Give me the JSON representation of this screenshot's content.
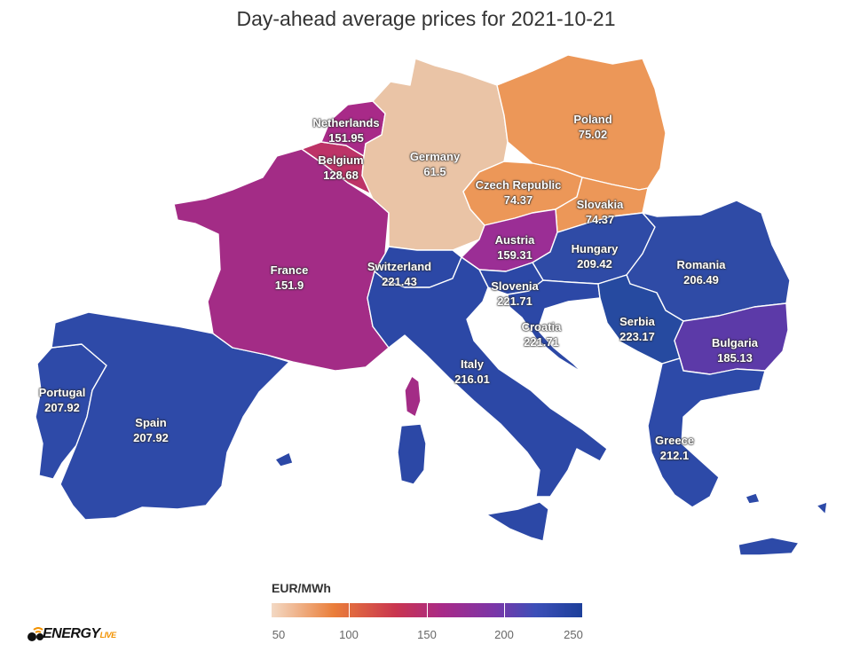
{
  "title": "Day-ahead average prices for 2021-10-21",
  "legend": {
    "title": "EUR/MWh",
    "ticks": [
      "50",
      "100",
      "150",
      "200",
      "250"
    ]
  },
  "logo": {
    "main": "ENERGY",
    "sub": "LIVE"
  },
  "colors": {
    "Portugal": "#2e4aa8",
    "Spain": "#2e4aa8",
    "France": "#a32c86",
    "Belgium": "#bd3367",
    "Netherlands": "#a82a88",
    "Germany": "#eac4a6",
    "Poland": "#ec9758",
    "Czech Republic": "#ec9758",
    "Slovakia": "#ec9758",
    "Austria": "#9b2e95",
    "Switzerland": "#2c48a6",
    "Italy": "#2c48a6",
    "Slovenia": "#2c48a6",
    "Croatia": "#2c48a6",
    "Hungary": "#2f4ba6",
    "Romania": "#2f4ba6",
    "Serbia": "#264aa0",
    "Bulgaria": "#5c3aa8",
    "Greece": "#2d4aa8",
    "Corsica": "#a32c86",
    "Sardinia": "#2c48a6"
  },
  "labels": [
    {
      "name": "Netherlands",
      "value": "151.95"
    },
    {
      "name": "Belgium",
      "value": "128.68"
    },
    {
      "name": "Germany",
      "value": "61.5"
    },
    {
      "name": "Poland",
      "value": "75.02"
    },
    {
      "name": "Czech Republic",
      "value": "74.37"
    },
    {
      "name": "Slovakia",
      "value": "74.37"
    },
    {
      "name": "France",
      "value": "151.9"
    },
    {
      "name": "Switzerland",
      "value": "221.43"
    },
    {
      "name": "Austria",
      "value": "159.31"
    },
    {
      "name": "Hungary",
      "value": "209.42"
    },
    {
      "name": "Romania",
      "value": "206.49"
    },
    {
      "name": "Slovenia",
      "value": "221.71"
    },
    {
      "name": "Croatia",
      "value": "221.71"
    },
    {
      "name": "Serbia",
      "value": "223.17"
    },
    {
      "name": "Bulgaria",
      "value": "185.13"
    },
    {
      "name": "Italy",
      "value": "216.01"
    },
    {
      "name": "Portugal",
      "value": "207.92"
    },
    {
      "name": "Spain",
      "value": "207.92"
    },
    {
      "name": "Greece",
      "value": "212.1"
    }
  ]
}
